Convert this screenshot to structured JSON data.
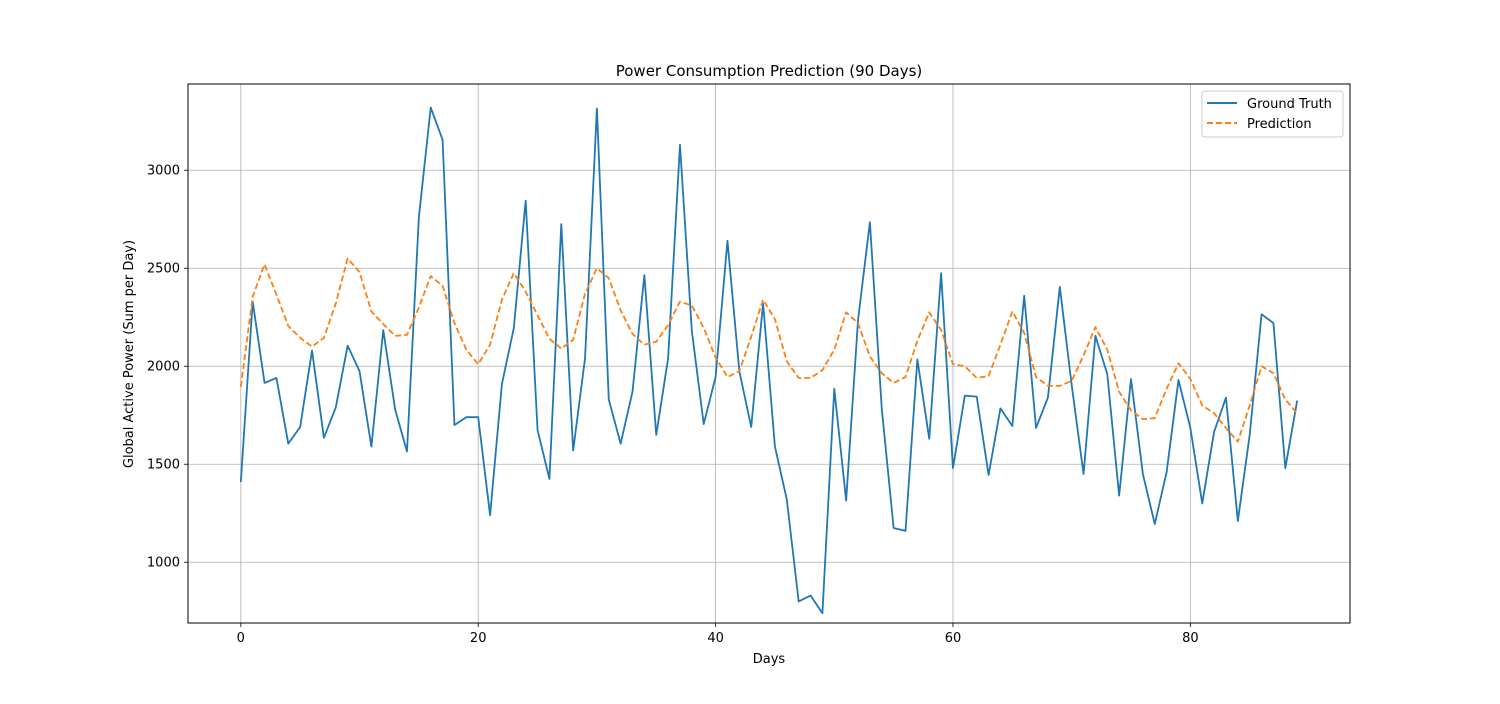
{
  "chart_data": {
    "type": "line",
    "title": "Power Consumption Prediction (90 Days)",
    "xlabel": "Days",
    "ylabel": "Global Active Power (Sum per Day)",
    "xlim": [
      -4.45,
      93.45
    ],
    "ylim": [
      690,
      3440
    ],
    "x_ticks": [
      0,
      20,
      40,
      60,
      80
    ],
    "y_ticks": [
      1000,
      1500,
      2000,
      2500,
      3000
    ],
    "grid": true,
    "legend_position": "top-right",
    "x": [
      0,
      1,
      2,
      3,
      4,
      5,
      6,
      7,
      8,
      9,
      10,
      11,
      12,
      13,
      14,
      15,
      16,
      17,
      18,
      19,
      20,
      21,
      22,
      23,
      24,
      25,
      26,
      27,
      28,
      29,
      30,
      31,
      32,
      33,
      34,
      35,
      36,
      37,
      38,
      39,
      40,
      41,
      42,
      43,
      44,
      45,
      46,
      47,
      48,
      49,
      50,
      51,
      52,
      53,
      54,
      55,
      56,
      57,
      58,
      59,
      60,
      61,
      62,
      63,
      64,
      65,
      66,
      67,
      68,
      69,
      70,
      71,
      72,
      73,
      74,
      75,
      76,
      77,
      78,
      79,
      80,
      81,
      82,
      83,
      84,
      85,
      86,
      87,
      88,
      89
    ],
    "series": [
      {
        "name": "Ground Truth",
        "color": "#1f77b4",
        "style": "solid",
        "values": [
          1410,
          2330,
          1915,
          1940,
          1605,
          1690,
          2080,
          1635,
          1790,
          2105,
          1975,
          1590,
          2185,
          1780,
          1565,
          2760,
          3320,
          3155,
          1700,
          1740,
          1740,
          1240,
          1910,
          2195,
          2845,
          1675,
          1425,
          2725,
          1570,
          2040,
          3315,
          1830,
          1605,
          1870,
          2465,
          1650,
          2040,
          3130,
          2180,
          1705,
          1945,
          2640,
          1975,
          1690,
          2320,
          1590,
          1320,
          800,
          830,
          740,
          1885,
          1315,
          2235,
          2735,
          1785,
          1175,
          1160,
          2035,
          1630,
          2475,
          1480,
          1850,
          1845,
          1445,
          1785,
          1695,
          2360,
          1685,
          1840,
          2405,
          1905,
          1450,
          2155,
          1960,
          1340,
          1935,
          1450,
          1195,
          1460,
          1930,
          1685,
          1300,
          1665,
          1840,
          1210,
          1650,
          2265,
          2220,
          1480,
          1825
        ]
      },
      {
        "name": "Prediction",
        "color": "#ff7f0e",
        "style": "dashed",
        "values": [
          1895,
          2355,
          2520,
          2365,
          2205,
          2145,
          2100,
          2145,
          2320,
          2550,
          2480,
          2280,
          2215,
          2155,
          2160,
          2300,
          2460,
          2410,
          2220,
          2085,
          2010,
          2110,
          2340,
          2475,
          2380,
          2260,
          2140,
          2090,
          2135,
          2370,
          2500,
          2450,
          2285,
          2165,
          2110,
          2125,
          2210,
          2330,
          2310,
          2195,
          2045,
          1945,
          1975,
          2150,
          2340,
          2240,
          2025,
          1940,
          1940,
          1980,
          2085,
          2275,
          2220,
          2050,
          1965,
          1915,
          1945,
          2130,
          2275,
          2185,
          2010,
          2000,
          1940,
          1950,
          2110,
          2280,
          2170,
          1945,
          1900,
          1900,
          1925,
          2055,
          2200,
          2085,
          1870,
          1775,
          1730,
          1735,
          1885,
          2015,
          1935,
          1800,
          1760,
          1685,
          1615,
          1800,
          2000,
          1965,
          1830,
          1760
        ]
      }
    ]
  }
}
